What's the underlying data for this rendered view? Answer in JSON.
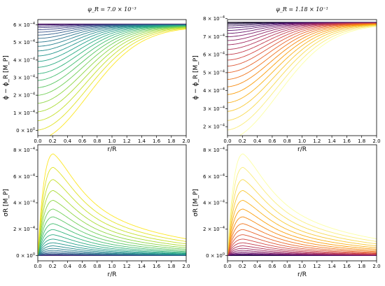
{
  "chart_data": [
    {
      "type": "line",
      "title": "φ_R = 7.0 × 10⁻³",
      "xlabel": "r/R",
      "ylabel": "ϕ − ϕ_R [M_P]",
      "xlim": [
        0,
        2.0
      ],
      "ylim": [
        -3e-05,
        0.00063
      ],
      "xticks": [
        0,
        0.2,
        0.4,
        0.6,
        0.8,
        1.0,
        1.2,
        1.4,
        1.6,
        1.8,
        2.0
      ],
      "xtick_labels": [
        "0.0",
        "0.2",
        "0.4",
        "0.6",
        "0.8",
        "1.0",
        "1.2",
        "1.4",
        "1.6",
        "1.8",
        "2.0"
      ],
      "yticks": [
        0,
        0.0001,
        0.0002,
        0.0003,
        0.0004,
        0.0005,
        0.0006
      ],
      "ytick_labels": [
        "0 × 10⁰",
        "1 × 10⁻⁴",
        "2 × 10⁻⁴",
        "3 × 10⁻⁴",
        "4 × 10⁻⁴",
        "5 × 10⁻⁴",
        "6 × 10⁻⁴"
      ],
      "colormap": "viridis",
      "profile": "phi",
      "n_curves": 24,
      "top_value": 0.000605,
      "plateau": 0.000595,
      "min_value": 1e-05,
      "grid": false
    },
    {
      "type": "line",
      "title": "φ_R = 1.18 × 10⁻¹",
      "xlabel": "r/R",
      "ylabel": "ϕ − ϕ_R [M_P]",
      "xlim": [
        0,
        2.0
      ],
      "ylim": [
        0.00015,
        0.000795
      ],
      "xticks": [
        0,
        0.2,
        0.4,
        0.6,
        0.8,
        1.0,
        1.2,
        1.4,
        1.6,
        1.8,
        2.0
      ],
      "xtick_labels": [
        "0.0",
        "0.2",
        "0.4",
        "0.6",
        "0.8",
        "1.0",
        "1.2",
        "1.4",
        "1.6",
        "1.8",
        "2.0"
      ],
      "yticks": [
        0.0002,
        0.0003,
        0.0004,
        0.0005,
        0.0006,
        0.0007,
        0.0008
      ],
      "ytick_labels": [
        "2 × 10⁻⁴",
        "3 × 10⁻⁴",
        "4 × 10⁻⁴",
        "5 × 10⁻⁴",
        "6 × 10⁻⁴",
        "7 × 10⁻⁴",
        "8 × 10⁻⁴"
      ],
      "colormap": "inferno",
      "profile": "phi",
      "n_curves": 24,
      "top_value": 0.00078,
      "plateau": 0.000775,
      "min_value": 0.00019,
      "grid": false
    },
    {
      "type": "line",
      "xlabel": "r/R",
      "ylabel": "σR [M_P]",
      "xlim": [
        0,
        2.0
      ],
      "ylim": [
        -4e-05,
        0.00084
      ],
      "xticks": [
        0,
        0.2,
        0.4,
        0.6,
        0.8,
        1.0,
        1.2,
        1.4,
        1.6,
        1.8,
        2.0
      ],
      "xtick_labels": [
        "0.0",
        "0.2",
        "0.4",
        "0.6",
        "0.8",
        "1.0",
        "1.2",
        "1.4",
        "1.6",
        "1.8",
        "2.0"
      ],
      "yticks": [
        0,
        0.0002,
        0.0004,
        0.0006,
        0.0008
      ],
      "ytick_labels": [
        "0 × 10⁰",
        "2 × 10⁻⁴",
        "4 × 10⁻⁴",
        "6 × 10⁻⁴",
        "8 × 10⁻⁴"
      ],
      "colormap": "viridis",
      "profile": "sigma",
      "n_curves": 24,
      "peak_r": 0.21,
      "max_peak": 0.00077,
      "grid": false
    },
    {
      "type": "line",
      "xlabel": "r/R",
      "ylabel": "σR [M_P]",
      "xlim": [
        0,
        2.0
      ],
      "ylim": [
        -4e-05,
        0.00084
      ],
      "xticks": [
        0,
        0.2,
        0.4,
        0.6,
        0.8,
        1.0,
        1.2,
        1.4,
        1.6,
        1.8,
        2.0
      ],
      "xtick_labels": [
        "0.0",
        "0.2",
        "0.4",
        "0.6",
        "0.8",
        "1.0",
        "1.2",
        "1.4",
        "1.6",
        "1.8",
        "2.0"
      ],
      "yticks": [
        0,
        0.0002,
        0.0004,
        0.0006,
        0.0008
      ],
      "ytick_labels": [
        "0 × 10⁰",
        "2 × 10⁻⁴",
        "4 × 10⁻⁴",
        "6 × 10⁻⁴",
        "8 × 10⁻⁴"
      ],
      "colormap": "inferno",
      "profile": "sigma",
      "n_curves": 24,
      "peak_r": 0.21,
      "max_peak": 0.00077,
      "grid": false
    }
  ]
}
